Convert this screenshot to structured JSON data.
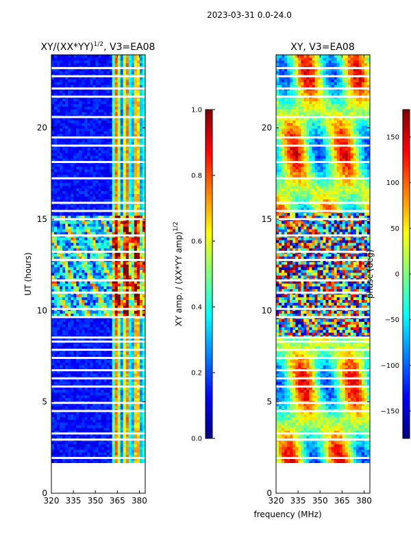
{
  "suptitle": "2023-03-31 0.0-24.0",
  "colormap": [
    "#00007f",
    "#0000ff",
    "#007fff",
    "#00ffff",
    "#7fff7f",
    "#ffff00",
    "#ff7f00",
    "#ff0000",
    "#7f0000"
  ],
  "chart_data": [
    {
      "type": "heatmap",
      "title_main": "XY/(XX*YY)",
      "title_exp": "1/2",
      "title_rest": ", V3=EA08",
      "xlim": [
        320,
        384
      ],
      "ylim": [
        0,
        24
      ],
      "xticks": [
        320,
        335,
        350,
        365,
        380
      ],
      "yticks": [
        0,
        5,
        10,
        15,
        20
      ],
      "xlabel": "",
      "ylabel": "UT (hours)",
      "data_start_hour": 1.65,
      "colorbar": {
        "label_main": "XY amp. / (XX*YY amp)",
        "label_exp": "1/2",
        "vmin": 0.0,
        "vmax": 1.0,
        "ticks": [
          "0.0",
          "0.2",
          "0.4",
          "0.6",
          "0.8",
          "1.0"
        ],
        "tick_values": [
          0.0,
          0.2,
          0.4,
          0.6,
          0.8,
          1.0
        ]
      }
    },
    {
      "type": "heatmap",
      "title_main": "XY, V3=EA08",
      "xlim": [
        320,
        384
      ],
      "ylim": [
        0,
        24
      ],
      "xticks": [
        320,
        335,
        350,
        365,
        380
      ],
      "yticks": [
        0,
        5,
        10,
        15,
        20
      ],
      "xlabel": "frequency (MHz)",
      "ylabel": "",
      "data_start_hour": 1.65,
      "colorbar": {
        "label_main": "phase (deg)",
        "vmin": -180,
        "vmax": 180,
        "ticks": [
          "−150",
          "−100",
          "−50",
          "0",
          "50",
          "100",
          "150"
        ],
        "tick_values": [
          -150,
          -100,
          -50,
          0,
          50,
          100,
          150
        ]
      }
    }
  ]
}
